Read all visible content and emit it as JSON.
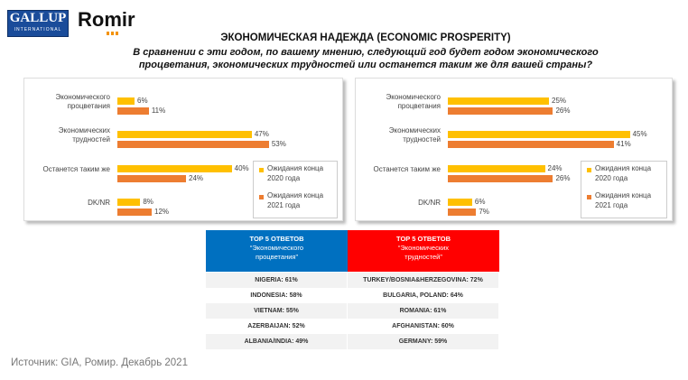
{
  "logos": {
    "gallup": "GALLUP",
    "gallup_sub": "INTERNATIONAL",
    "romir": "Romir"
  },
  "header": {
    "title": "ЭКОНОМИЧЕСКАЯ  НАДЕЖДА (ECONOMIC  PROSPERITY)",
    "subtitle": "В сравнении с эти годом, по вашему мнению, следующий год будет годом экономического процветания, экономических трудностей или останется таким же для вашей страны?"
  },
  "chart_data": [
    {
      "type": "bar",
      "orientation": "horizontal",
      "categories": [
        "Экономического процветания",
        "Экономических трудностей",
        "Останется таким же",
        "DK/NR"
      ],
      "series": [
        {
          "name": "Ожидания конца 2020 года",
          "color": "#FFC000",
          "values": [
            6,
            47,
            40,
            8
          ],
          "value_labels": [
            "6%",
            "47%",
            "40%",
            "8%"
          ]
        },
        {
          "name": "Ожидания конца 2021 года",
          "color": "#ED7D31",
          "values": [
            11,
            53,
            24,
            12
          ],
          "value_labels": [
            "11%",
            "53%",
            "24%",
            "12%"
          ]
        }
      ],
      "xlim": [
        0,
        60
      ],
      "legend": "lower right"
    },
    {
      "type": "bar",
      "orientation": "horizontal",
      "categories": [
        "Экономического процветания",
        "Экономических трудностей",
        "Останется таким же",
        "DK/NR"
      ],
      "series": [
        {
          "name": "Ожидания конца 2020 года",
          "color": "#FFC000",
          "values": [
            25,
            45,
            24,
            6
          ],
          "value_labels": [
            "25%",
            "45%",
            "24%",
            "6%"
          ]
        },
        {
          "name": "Ожидания конца 2021 года",
          "color": "#ED7D31",
          "values": [
            26,
            41,
            26,
            7
          ],
          "value_labels": [
            "26%",
            "41%",
            "26%",
            "7%"
          ]
        }
      ],
      "xlim": [
        0,
        50
      ],
      "legend": "lower right"
    }
  ],
  "table": {
    "headers": [
      {
        "top": "TOP 5 ОТВЕТОВ",
        "sub": "“Экономического процветания”"
      },
      {
        "top": "TOP 5 ОТВЕТОВ",
        "sub": "“Экономических трудностей”"
      }
    ],
    "rows": [
      [
        "NIGERIA: 61%",
        "TURKEY/BOSNIA&HERZEGOVINA: 72%"
      ],
      [
        "INDONESIA: 58%",
        "BULGARIA, POLAND: 64%"
      ],
      [
        "VIETNAM: 55%",
        "ROMANIA: 61%"
      ],
      [
        "AZERBAIJAN: 52%",
        "AFGHANISTAN: 60%"
      ],
      [
        "ALBANIA/INDIA: 49%",
        "GERMANY: 59%"
      ]
    ]
  },
  "source": "Источник: GIA, Ромир. Декабрь 2021"
}
